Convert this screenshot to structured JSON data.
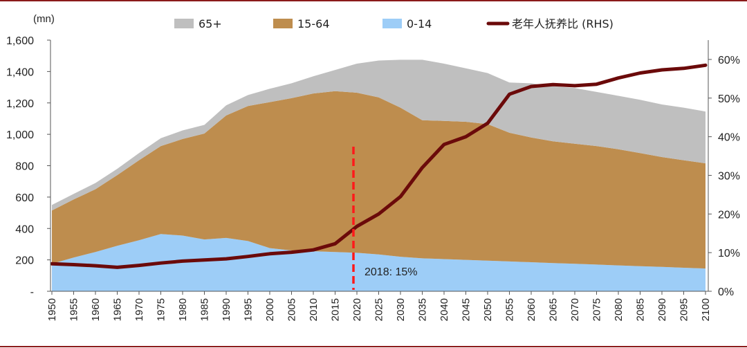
{
  "chart_data": {
    "type": "area",
    "unit_label": "(mn)",
    "x": [
      1950,
      1955,
      1960,
      1965,
      1970,
      1975,
      1980,
      1985,
      1990,
      1995,
      2000,
      2005,
      2010,
      2015,
      2020,
      2025,
      2030,
      2035,
      2040,
      2045,
      2050,
      2055,
      2060,
      2065,
      2070,
      2075,
      2080,
      2085,
      2090,
      2095,
      2100
    ],
    "x_ticks": [
      "1950",
      "1955",
      "1960",
      "1965",
      "1970",
      "1975",
      "1980",
      "1985",
      "1990",
      "1995",
      "2000",
      "2005",
      "2010",
      "2015",
      "2020",
      "2025",
      "2030",
      "2035",
      "2040",
      "2045",
      "2050",
      "2055",
      "2060",
      "2065",
      "2070",
      "2075",
      "2080",
      "2085",
      "2090",
      "2095",
      "2100"
    ],
    "ylim": [
      0,
      1600
    ],
    "y_ticks": [
      "-",
      "200",
      "400",
      "600",
      "800",
      "1,000",
      "1,200",
      "1,400",
      "1,600"
    ],
    "y2lim": [
      0,
      0.65
    ],
    "y2_ticks": [
      "0%",
      "10%",
      "20%",
      "30%",
      "40%",
      "50%",
      "60%"
    ],
    "series": [
      {
        "name": "0-14",
        "color": "#9dcdf7",
        "values": [
          175,
          215,
          250,
          290,
          325,
          365,
          355,
          330,
          340,
          320,
          275,
          260,
          255,
          250,
          245,
          235,
          220,
          210,
          205,
          200,
          195,
          190,
          185,
          180,
          175,
          170,
          165,
          160,
          155,
          150,
          145
        ]
      },
      {
        "name": "15-64",
        "color": "#be8d4e",
        "values": [
          340,
          370,
          400,
          450,
          510,
          560,
          615,
          675,
          780,
          860,
          930,
          970,
          1005,
          1025,
          1020,
          1000,
          950,
          880,
          880,
          880,
          870,
          820,
          795,
          775,
          765,
          755,
          740,
          720,
          700,
          685,
          670
        ]
      },
      {
        "name": "65+",
        "color": "#bfbfbf",
        "values": [
          35,
          35,
          40,
          40,
          45,
          50,
          55,
          55,
          65,
          70,
          85,
          95,
          110,
          135,
          185,
          235,
          305,
          385,
          365,
          340,
          325,
          320,
          345,
          350,
          355,
          345,
          340,
          340,
          335,
          335,
          330
        ]
      }
    ],
    "line_series": {
      "name": "老年人抚养比 (RHS)",
      "color": "#6b0a0a",
      "axis": "right",
      "values": [
        0.071,
        0.069,
        0.066,
        0.062,
        0.067,
        0.073,
        0.078,
        0.081,
        0.084,
        0.09,
        0.097,
        0.101,
        0.107,
        0.123,
        0.168,
        0.2,
        0.245,
        0.32,
        0.38,
        0.4,
        0.435,
        0.51,
        0.53,
        0.535,
        0.532,
        0.536,
        0.552,
        0.565,
        0.573,
        0.577,
        0.585
      ]
    },
    "annotation": {
      "text": "2018: 15%",
      "x": 2020
    },
    "legend": [
      "65+",
      "15-64",
      "0-14",
      "老年人抚养比 (RHS)"
    ],
    "legend_position": "top"
  }
}
